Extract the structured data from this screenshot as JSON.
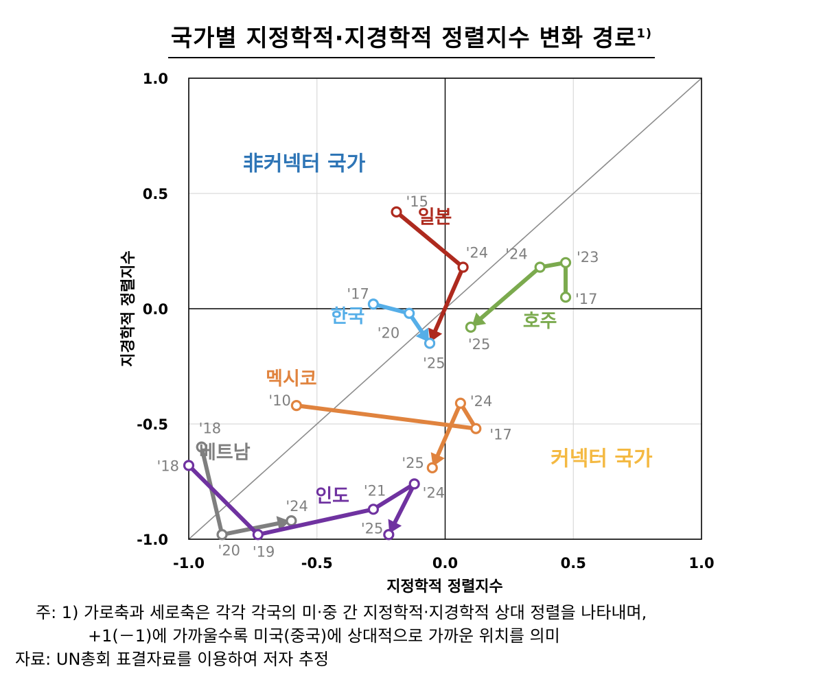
{
  "title": {
    "main": "국가별 지정학적·지경학적 정렬지수 변화 경로",
    "superscript": "1)"
  },
  "notes": {
    "line1": "주: 1) 가로축과 세로축은 각각 각국의 미‧중 간 지정학적‧지경학적 상대 정렬을 나타내며,",
    "line2": "+1(－1)에 가까울수록 미국(중국)에 상대적으로 가까운 위치를 의미",
    "source": "자료: UN총회 표결자료를 이용하여 저자 추정"
  },
  "chart_data": {
    "type": "line",
    "title": "국가별 지정학적·지경학적 정렬지수 변화 경로",
    "xlabel": "지정학적 정렬지수",
    "ylabel": "지경학적 정렬지수",
    "xlim": [
      -1.0,
      1.0
    ],
    "ylim": [
      -1.0,
      1.0
    ],
    "xticks": [
      "-1.0",
      "-0.5",
      "0.0",
      "0.5",
      "1.0"
    ],
    "yticks": [
      "1.0",
      "0.5",
      "0.0",
      "-0.5",
      "-1.0"
    ],
    "grid": true,
    "diagonal": true,
    "regions": [
      {
        "label": "非커넥터 국가",
        "x": -0.55,
        "y": 0.6,
        "color": "#2E75B6"
      },
      {
        "label": "커넥터 국가",
        "x": 0.61,
        "y": -0.68,
        "color": "#F4B942"
      }
    ],
    "series": [
      {
        "name": "일본",
        "color": "#AE2A1E",
        "name_x": -0.04,
        "name_y": 0.37,
        "points": [
          [
            -0.19,
            0.42,
            "'15"
          ],
          [
            0.07,
            0.18,
            "'24"
          ],
          [
            -0.06,
            -0.15,
            "'25"
          ]
        ]
      },
      {
        "name": "호주",
        "color": "#7BAA4E",
        "name_x": 0.37,
        "name_y": -0.08,
        "points": [
          [
            0.47,
            0.05,
            "'17"
          ],
          [
            0.47,
            0.2,
            "'23"
          ],
          [
            0.37,
            0.18,
            "'24"
          ],
          [
            0.1,
            -0.08,
            "'25"
          ]
        ]
      },
      {
        "name": "한국",
        "color": "#55AEE8",
        "name_x": -0.38,
        "name_y": -0.06,
        "points": [
          [
            -0.28,
            0.02,
            "'17"
          ],
          [
            -0.14,
            -0.02,
            "'20"
          ],
          [
            -0.06,
            -0.15,
            "'25"
          ]
        ]
      },
      {
        "name": "멕시코",
        "color": "#E0833E",
        "name_x": -0.6,
        "name_y": -0.33,
        "points": [
          [
            -0.58,
            -0.42,
            "'10"
          ],
          [
            0.12,
            -0.52,
            "'17"
          ],
          [
            0.06,
            -0.41,
            "'24"
          ],
          [
            -0.05,
            -0.69,
            "'25"
          ]
        ]
      },
      {
        "name": "베트남",
        "color": "#7F7F7F",
        "name_x": -0.86,
        "name_y": -0.65,
        "points": [
          [
            -0.95,
            -0.6,
            "'18"
          ],
          [
            -0.87,
            -0.98,
            "'20"
          ],
          [
            -0.6,
            -0.92,
            "'24"
          ]
        ]
      },
      {
        "name": "인도",
        "color": "#6F32A0",
        "name_x": -0.44,
        "name_y": -0.84,
        "points": [
          [
            -1.0,
            -0.68,
            "'18"
          ],
          [
            -0.73,
            -0.98,
            "'19"
          ],
          [
            -0.28,
            -0.87,
            "'21"
          ],
          [
            -0.12,
            -0.76,
            "'24"
          ],
          [
            -0.22,
            -0.98,
            "'25"
          ]
        ]
      }
    ]
  }
}
